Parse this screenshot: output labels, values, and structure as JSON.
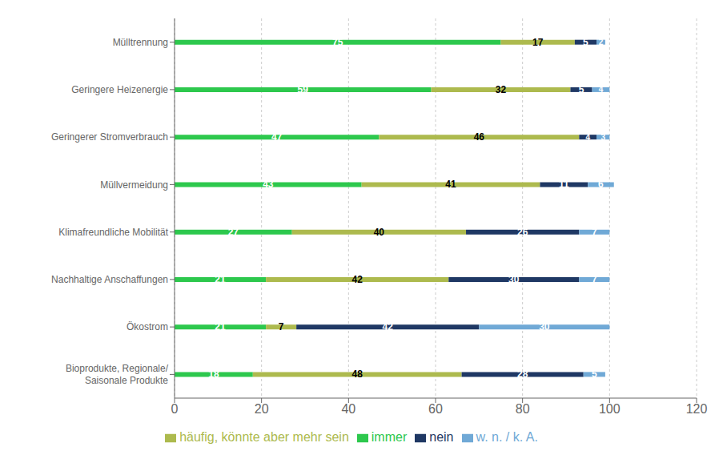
{
  "chart_data": {
    "type": "bar",
    "orientation": "horizontal",
    "stacked": true,
    "data_labels": true,
    "grid": true,
    "legend": "bottom",
    "categories": [
      "Mülltrennung",
      "Geringere Heizenergie",
      "Geringerer Stromverbrauch",
      "Müllvermeidung",
      "Klimafreundliche Mobilität",
      "Nachhaltige Anschaffungen",
      "Ökostrom",
      "Bioprodukte, Regionale/\nSaisonale Produkte"
    ],
    "series": [
      {
        "name": "immer",
        "color": "#2DC84D",
        "values": [
          75,
          59,
          47,
          43,
          27,
          21,
          21,
          18
        ]
      },
      {
        "name": "häufig, könnte aber mehr sein",
        "color": "#ADBA4E",
        "values": [
          17,
          32,
          46,
          41,
          40,
          42,
          7,
          48
        ]
      },
      {
        "name": "nein",
        "color": "#1F3864",
        "values": [
          5,
          5,
          4,
          11,
          26,
          30,
          42,
          28
        ]
      },
      {
        "name": "w. n. / k. A.",
        "color": "#70A9D6",
        "values": [
          2,
          4,
          3,
          6,
          7,
          7,
          30,
          5
        ]
      }
    ],
    "xlim": [
      0,
      120
    ],
    "xticks": [
      0,
      20,
      40,
      60,
      80,
      100,
      120
    ]
  }
}
